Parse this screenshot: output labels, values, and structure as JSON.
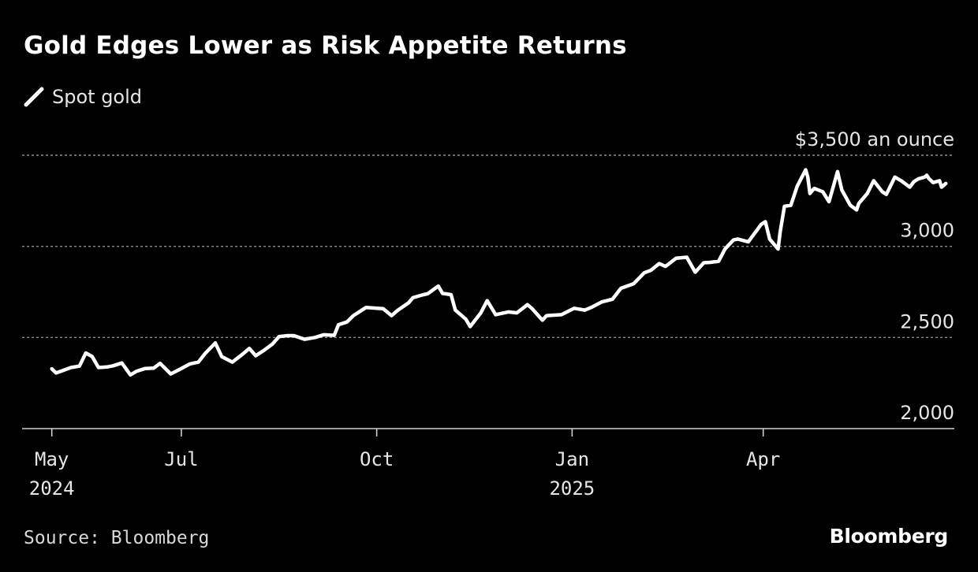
{
  "colors": {
    "background": "#000000",
    "line": "#ffffff",
    "grid": "#8a8a8a",
    "text": "#e6e6e6"
  },
  "footer": {
    "source": "Source: Bloomberg",
    "brand": "Bloomberg"
  },
  "chart_data": {
    "type": "line",
    "title": "Gold Edges Lower as Risk Appetite Returns",
    "xlabel": "",
    "ylabel": "",
    "y_unit_label": "$3,500 an ounce",
    "ylim": [
      2000,
      3500
    ],
    "xlim": [
      "2024-04-17",
      "2025-06-30"
    ],
    "grid": true,
    "legend_position": "top-left",
    "y_ticks": [
      {
        "value": 2000,
        "label": "2,000"
      },
      {
        "value": 2500,
        "label": "2,500"
      },
      {
        "value": 3000,
        "label": "3,000"
      },
      {
        "value": 3500,
        "label": "$3,500 an ounce"
      }
    ],
    "x_ticks": [
      {
        "date": "2024-05-01",
        "label": "May",
        "sublabel": "2024"
      },
      {
        "date": "2024-07-01",
        "label": "Jul",
        "sublabel": ""
      },
      {
        "date": "2024-10-01",
        "label": "Oct",
        "sublabel": ""
      },
      {
        "date": "2025-01-01",
        "label": "Jan",
        "sublabel": "2025"
      },
      {
        "date": "2025-04-01",
        "label": "Apr",
        "sublabel": ""
      }
    ],
    "series": [
      {
        "name": "Spot gold",
        "x": [
          "2024-05-01",
          "2024-05-03",
          "2024-05-07",
          "2024-05-10",
          "2024-05-14",
          "2024-05-17",
          "2024-05-20",
          "2024-05-23",
          "2024-05-27",
          "2024-05-30",
          "2024-06-03",
          "2024-06-07",
          "2024-06-10",
          "2024-06-14",
          "2024-06-18",
          "2024-06-21",
          "2024-06-26",
          "2024-07-01",
          "2024-07-05",
          "2024-07-09",
          "2024-07-12",
          "2024-07-17",
          "2024-07-20",
          "2024-07-25",
          "2024-07-30",
          "2024-08-02",
          "2024-08-05",
          "2024-08-09",
          "2024-08-13",
          "2024-08-16",
          "2024-08-20",
          "2024-08-23",
          "2024-08-28",
          "2024-09-02",
          "2024-09-06",
          "2024-09-11",
          "2024-09-13",
          "2024-09-17",
          "2024-09-20",
          "2024-09-26",
          "2024-10-01",
          "2024-10-04",
          "2024-10-08",
          "2024-10-11",
          "2024-10-16",
          "2024-10-18",
          "2024-10-23",
          "2024-10-25",
          "2024-10-30",
          "2024-11-01",
          "2024-11-05",
          "2024-11-07",
          "2024-11-12",
          "2024-11-14",
          "2024-11-19",
          "2024-11-22",
          "2024-11-26",
          "2024-12-02",
          "2024-12-06",
          "2024-12-11",
          "2024-12-13",
          "2024-12-18",
          "2024-12-20",
          "2024-12-27",
          "2025-01-02",
          "2025-01-07",
          "2025-01-10",
          "2025-01-15",
          "2025-01-20",
          "2025-01-24",
          "2025-01-30",
          "2025-02-04",
          "2025-02-07",
          "2025-02-11",
          "2025-02-14",
          "2025-02-19",
          "2025-02-24",
          "2025-02-28",
          "2025-03-04",
          "2025-03-07",
          "2025-03-11",
          "2025-03-14",
          "2025-03-18",
          "2025-03-20",
          "2025-03-25",
          "2025-03-31",
          "2025-04-02",
          "2025-04-04",
          "2025-04-08",
          "2025-04-09",
          "2025-04-11",
          "2025-04-14",
          "2025-04-17",
          "2025-04-21",
          "2025-04-22",
          "2025-04-23",
          "2025-04-25",
          "2025-04-29",
          "2025-05-02",
          "2025-05-06",
          "2025-05-08",
          "2025-05-12",
          "2025-05-15",
          "2025-05-16",
          "2025-05-20",
          "2025-05-23",
          "2025-05-27",
          "2025-05-29",
          "2025-06-02",
          "2025-06-05",
          "2025-06-09",
          "2025-06-11",
          "2025-06-13",
          "2025-06-16",
          "2025-06-17",
          "2025-06-18",
          "2025-06-20",
          "2025-06-23",
          "2025-06-24",
          "2025-06-26"
        ],
        "values": [
          2328,
          2305,
          2322,
          2335,
          2343,
          2415,
          2395,
          2335,
          2338,
          2345,
          2360,
          2295,
          2315,
          2330,
          2332,
          2358,
          2300,
          2330,
          2355,
          2365,
          2410,
          2470,
          2395,
          2365,
          2410,
          2440,
          2400,
          2430,
          2465,
          2505,
          2510,
          2510,
          2490,
          2500,
          2515,
          2512,
          2570,
          2585,
          2620,
          2665,
          2660,
          2658,
          2620,
          2650,
          2690,
          2718,
          2735,
          2740,
          2782,
          2742,
          2735,
          2650,
          2600,
          2560,
          2635,
          2702,
          2625,
          2640,
          2635,
          2680,
          2660,
          2595,
          2620,
          2625,
          2660,
          2650,
          2665,
          2695,
          2710,
          2770,
          2795,
          2855,
          2868,
          2905,
          2890,
          2935,
          2940,
          2858,
          2910,
          2912,
          2918,
          2985,
          3035,
          3040,
          3025,
          3120,
          3135,
          3040,
          2985,
          3080,
          3220,
          3225,
          3330,
          3420,
          3380,
          3290,
          3318,
          3300,
          3245,
          3410,
          3310,
          3225,
          3200,
          3235,
          3290,
          3360,
          3300,
          3285,
          3380,
          3360,
          3325,
          3355,
          3370,
          3380,
          3390,
          3372,
          3350,
          3360,
          3325,
          3345
        ]
      }
    ]
  }
}
